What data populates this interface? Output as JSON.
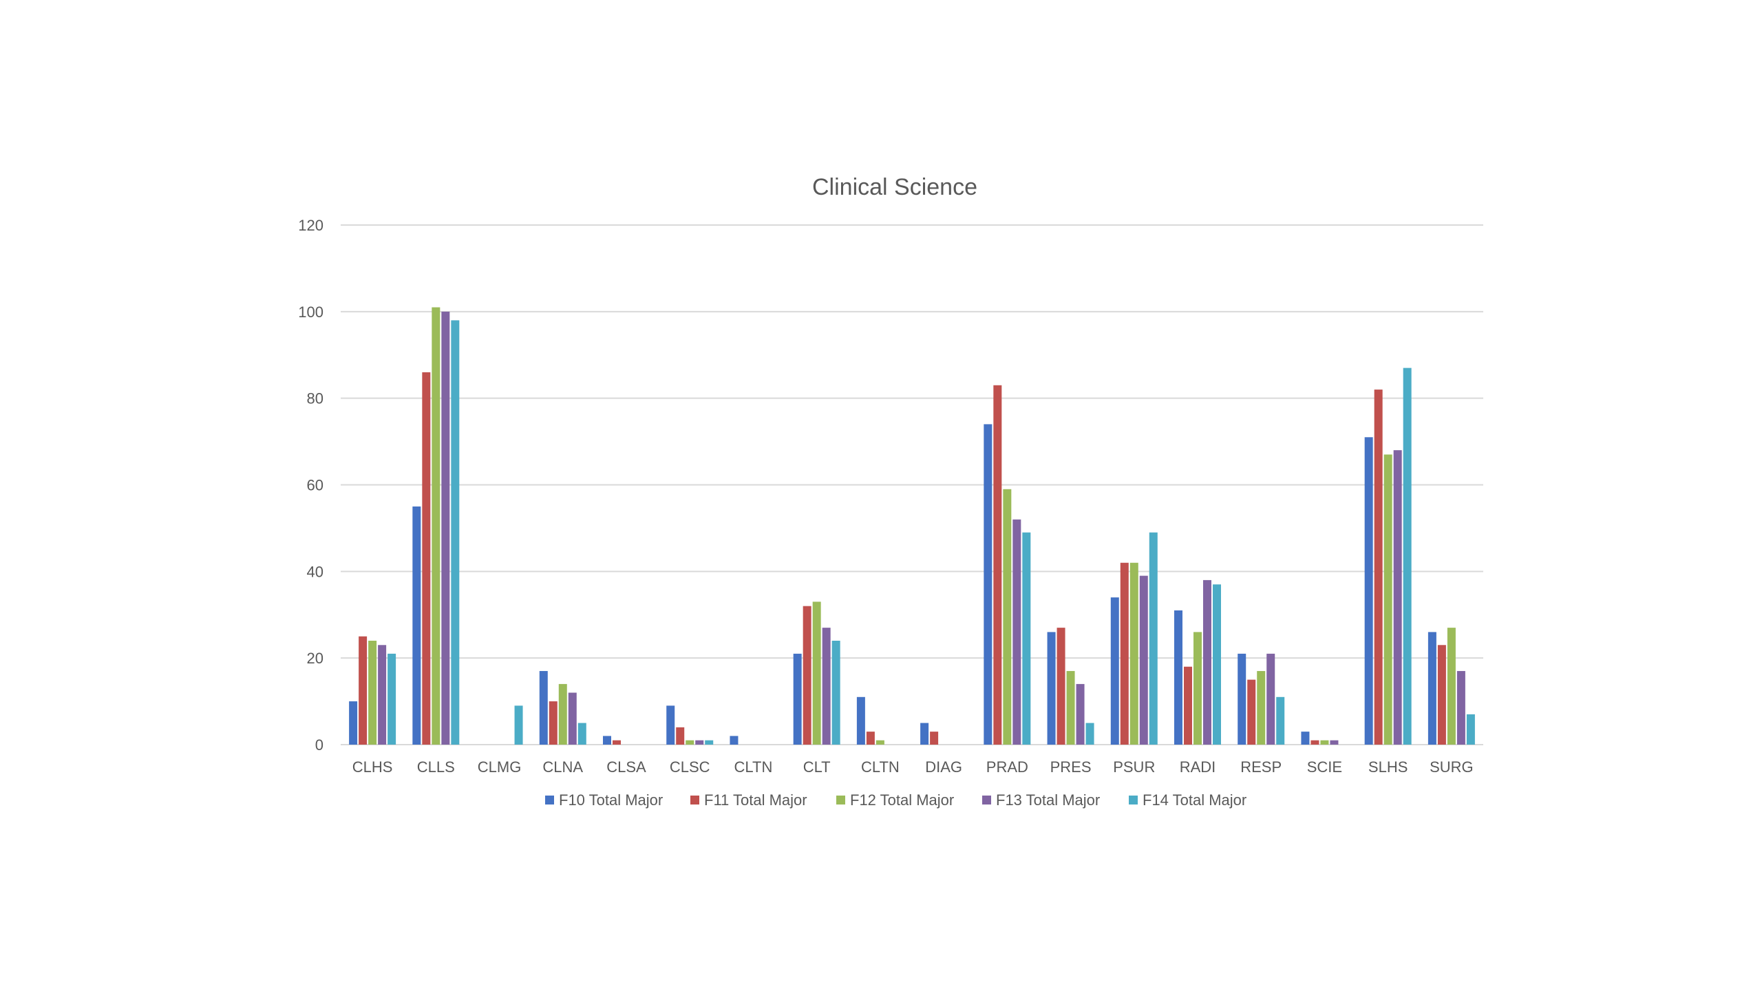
{
  "chart_data": {
    "type": "bar",
    "title": "Clinical Science",
    "xlabel": "",
    "ylabel": "",
    "ylim": [
      0,
      120
    ],
    "yticks": [
      0,
      20,
      40,
      60,
      80,
      100,
      120
    ],
    "grid": true,
    "legend_position": "bottom",
    "categories": [
      "CLHS",
      "CLLS",
      "CLMG",
      "CLNA",
      "CLSA",
      "CLSC",
      "CLTN",
      "CLT",
      "CLTN",
      "DIAG",
      "PRAD",
      "PRES",
      "PSUR",
      "RADI",
      "RESP",
      "SCIE",
      "SLHS",
      "SURG"
    ],
    "series": [
      {
        "name": "F10 Total Major",
        "color": "#4472c4",
        "values": [
          10,
          55,
          0,
          17,
          2,
          9,
          2,
          21,
          11,
          5,
          74,
          26,
          34,
          31,
          21,
          3,
          71,
          26
        ]
      },
      {
        "name": "F11 Total Major",
        "color": "#c0504d",
        "values": [
          25,
          86,
          0,
          10,
          1,
          4,
          0,
          32,
          3,
          3,
          83,
          27,
          42,
          18,
          15,
          1,
          82,
          23
        ]
      },
      {
        "name": "F12 Total Major",
        "color": "#9bbb59",
        "values": [
          24,
          101,
          0,
          14,
          0,
          1,
          0,
          33,
          1,
          0,
          59,
          17,
          42,
          26,
          17,
          1,
          67,
          27
        ]
      },
      {
        "name": "F13 Total Major",
        "color": "#8064a2",
        "values": [
          23,
          100,
          0,
          12,
          0,
          1,
          0,
          27,
          0,
          0,
          52,
          14,
          39,
          38,
          21,
          1,
          68,
          17
        ]
      },
      {
        "name": "F14 Total Major",
        "color": "#4bacc6",
        "values": [
          21,
          98,
          9,
          5,
          0,
          1,
          0,
          24,
          0,
          0,
          49,
          5,
          49,
          37,
          11,
          0,
          87,
          7
        ]
      }
    ]
  }
}
